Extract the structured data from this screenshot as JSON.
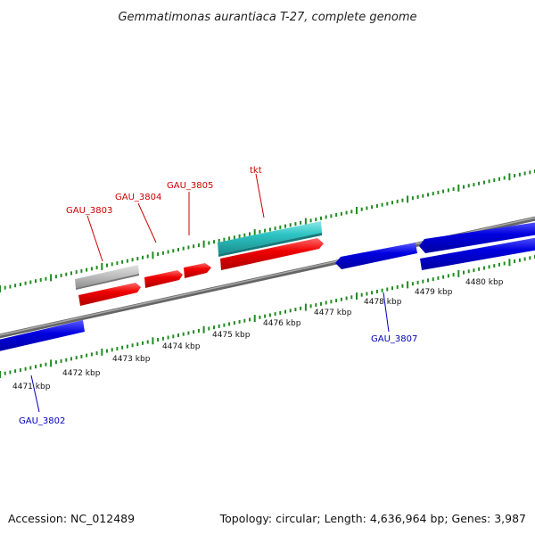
{
  "title": "Gemmatimonas aurantiaca T-27, complete genome",
  "footer": {
    "accession": "Accession: NC_012489",
    "topology": "Topology: circular; Length: 4,636,964 bp; Genes: 3,987"
  },
  "scale_labels": [
    "4471 kbp",
    "4472 kbp",
    "4473 kbp",
    "4474 kbp",
    "4475 kbp",
    "4476 kbp",
    "4477 kbp",
    "4478 kbp",
    "4479 kbp",
    "4480 kbp"
  ],
  "gene_labels": {
    "gau3803": "GAU_3803",
    "gau3804": "GAU_3804",
    "gau3805": "GAU_3805",
    "tkt": "tkt",
    "gau3807": "GAU_3807",
    "gau3802": "GAU_3802"
  },
  "colors": {
    "forward_cds": "#e60000",
    "reverse_cds": "#0000dd",
    "rrna_teal": "#2ec4c4",
    "gray_feature": "#b8b8b8",
    "backbone": "#888888",
    "tick_green": "#228b22",
    "label_red": "#cc0000",
    "label_blue": "#0000bb"
  }
}
